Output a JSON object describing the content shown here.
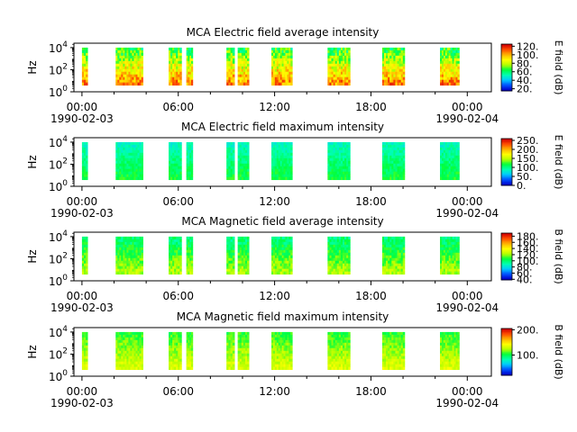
{
  "chart_data": [
    {
      "type": "heatmap",
      "title": "MCA  Electric field average intensity",
      "ylabel": "Hz",
      "colorbar_label": "E field (dB)",
      "colorbar_range": [
        15,
        125
      ],
      "colorbar_ticks": [
        "20.",
        "40.",
        "60.",
        "80.",
        "100.",
        "120."
      ],
      "colorbar_tick_values": [
        20,
        40,
        60,
        80,
        100,
        120
      ],
      "y_scale": "log",
      "y_ticks": [
        {
          "base": "10",
          "exp": "0"
        },
        {
          "base": "10",
          "exp": "2"
        },
        {
          "base": "10",
          "exp": "4"
        }
      ],
      "mean_level": 85,
      "spread": 30
    },
    {
      "type": "heatmap",
      "title": "MCA  Electric field maximum intensity",
      "ylabel": "Hz",
      "colorbar_label": "E field (dB)",
      "colorbar_range": [
        0,
        260
      ],
      "colorbar_ticks": [
        "0.",
        "50.",
        "100.",
        "150.",
        "200.",
        "250."
      ],
      "colorbar_tick_values": [
        0,
        50,
        100,
        150,
        200,
        250
      ],
      "y_scale": "log",
      "y_ticks": [
        {
          "base": "10",
          "exp": "0"
        },
        {
          "base": "10",
          "exp": "2"
        },
        {
          "base": "10",
          "exp": "4"
        }
      ],
      "mean_level": 100,
      "spread": 25
    },
    {
      "type": "heatmap",
      "title": "MCA  Magnetic field average intensity",
      "ylabel": "Hz",
      "colorbar_label": "B field (dB)",
      "colorbar_range": [
        38,
        190
      ],
      "colorbar_ticks": [
        "40.",
        "60.",
        "80.",
        "100.",
        "120.",
        "140.",
        "160.",
        "180."
      ],
      "colorbar_tick_values": [
        40,
        60,
        80,
        100,
        120,
        140,
        160,
        180
      ],
      "y_scale": "log",
      "y_ticks": [
        {
          "base": "10",
          "exp": "0"
        },
        {
          "base": "10",
          "exp": "2"
        },
        {
          "base": "10",
          "exp": "4"
        }
      ],
      "mean_level": 110,
      "spread": 20
    },
    {
      "type": "heatmap",
      "title": "MCA  Magnetic field maximum intensity",
      "ylabel": "Hz",
      "colorbar_label": "B field (dB)",
      "colorbar_range": [
        20,
        205
      ],
      "colorbar_ticks": [
        "100.",
        "200."
      ],
      "colorbar_tick_values": [
        100,
        200
      ],
      "y_scale": "log",
      "y_ticks": [
        {
          "base": "10",
          "exp": "0"
        },
        {
          "base": "10",
          "exp": "2"
        },
        {
          "base": "10",
          "exp": "4"
        }
      ],
      "mean_level": 120,
      "spread": 20
    }
  ],
  "x_axis": {
    "range_hours": [
      -0.5,
      25.5
    ],
    "major_ticks": [
      {
        "hour": 0,
        "label": "00:00",
        "date": "1990-02-03"
      },
      {
        "hour": 6,
        "label": "06:00",
        "date": ""
      },
      {
        "hour": 12,
        "label": "12:00",
        "date": ""
      },
      {
        "hour": 18,
        "label": "18:00",
        "date": ""
      },
      {
        "hour": 24,
        "label": "00:00",
        "date": "1990-02-04"
      }
    ],
    "minor_tick_hours": [
      2,
      4,
      8,
      10,
      14,
      16,
      20,
      22
    ]
  },
  "y_axis_range_log10": [
    0,
    4.4
  ],
  "data_segments_hours": [
    [
      0.0,
      0.35
    ],
    [
      2.1,
      3.8
    ],
    [
      5.4,
      6.2
    ],
    [
      6.5,
      6.9
    ],
    [
      9.0,
      9.5
    ],
    [
      9.7,
      10.4
    ],
    [
      11.8,
      13.1
    ],
    [
      15.3,
      16.7
    ],
    [
      18.7,
      20.1
    ],
    [
      22.3,
      23.5
    ]
  ],
  "colormap": [
    "#0000c8",
    "#0050ff",
    "#00c8ff",
    "#00ffb4",
    "#00ff40",
    "#b4ff00",
    "#ffff00",
    "#ffb400",
    "#ff5000",
    "#d20000"
  ]
}
